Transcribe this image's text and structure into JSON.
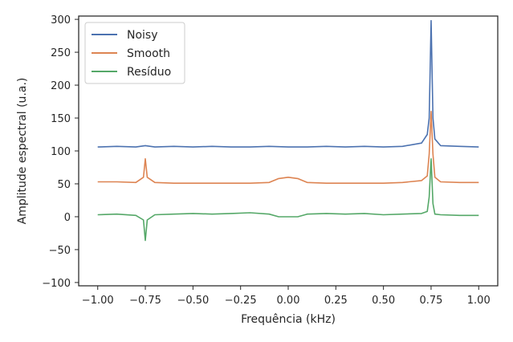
{
  "chart_data": {
    "type": "line",
    "xlabel": "Frequência (kHz)",
    "ylabel": "Amplitude espectral (u.a.)",
    "xlim": [
      -1.1,
      1.1
    ],
    "ylim": [
      -105,
      305
    ],
    "xticks": [
      -1.0,
      -0.75,
      -0.5,
      -0.25,
      0.0,
      0.25,
      0.5,
      0.75,
      1.0
    ],
    "xtick_labels": [
      "−1.00",
      "−0.75",
      "−0.50",
      "−0.25",
      "0.00",
      "0.25",
      "0.50",
      "0.75",
      "1.00"
    ],
    "yticks": [
      -100,
      -50,
      0,
      50,
      100,
      150,
      200,
      250,
      300
    ],
    "ytick_labels": [
      "−100",
      "−50",
      "0",
      "50",
      "100",
      "150",
      "200",
      "250",
      "300"
    ],
    "grid": false,
    "legend_position": "top-left",
    "series": [
      {
        "name": "Noisy",
        "color": "#4c72b0",
        "x": [
          -1.0,
          -0.9,
          -0.8,
          -0.75,
          -0.7,
          -0.6,
          -0.5,
          -0.4,
          -0.3,
          -0.2,
          -0.1,
          0.0,
          0.1,
          0.2,
          0.3,
          0.4,
          0.5,
          0.6,
          0.7,
          0.73,
          0.74,
          0.75,
          0.76,
          0.77,
          0.8,
          0.9,
          1.0
        ],
        "y": [
          106,
          107,
          106,
          108,
          106,
          107,
          106,
          107,
          106,
          106,
          107,
          106,
          106,
          107,
          106,
          107,
          106,
          107,
          112,
          125,
          150,
          298,
          150,
          118,
          108,
          107,
          106
        ]
      },
      {
        "name": "Smooth",
        "color": "#dd8452",
        "x": [
          -1.0,
          -0.9,
          -0.8,
          -0.76,
          -0.75,
          -0.74,
          -0.7,
          -0.6,
          -0.5,
          -0.4,
          -0.3,
          -0.2,
          -0.1,
          -0.05,
          0.0,
          0.05,
          0.1,
          0.2,
          0.3,
          0.4,
          0.5,
          0.6,
          0.7,
          0.73,
          0.74,
          0.75,
          0.76,
          0.77,
          0.8,
          0.9,
          1.0
        ],
        "y": [
          53,
          53,
          52,
          60,
          88,
          60,
          52,
          51,
          51,
          51,
          51,
          51,
          52,
          58,
          60,
          58,
          52,
          51,
          51,
          51,
          51,
          52,
          55,
          62,
          95,
          160,
          95,
          60,
          53,
          52,
          52
        ]
      },
      {
        "name": "Resíduo",
        "color": "#55a868",
        "x": [
          -1.0,
          -0.9,
          -0.8,
          -0.76,
          -0.75,
          -0.74,
          -0.7,
          -0.6,
          -0.5,
          -0.4,
          -0.3,
          -0.2,
          -0.1,
          -0.05,
          0.0,
          0.05,
          0.1,
          0.2,
          0.3,
          0.4,
          0.5,
          0.6,
          0.7,
          0.73,
          0.74,
          0.75,
          0.76,
          0.77,
          0.8,
          0.9,
          1.0
        ],
        "y": [
          3,
          4,
          2,
          -5,
          -36,
          -5,
          3,
          4,
          5,
          4,
          5,
          6,
          4,
          0,
          0,
          0,
          4,
          5,
          4,
          5,
          3,
          4,
          5,
          8,
          30,
          88,
          20,
          4,
          3,
          2,
          2
        ]
      }
    ]
  }
}
